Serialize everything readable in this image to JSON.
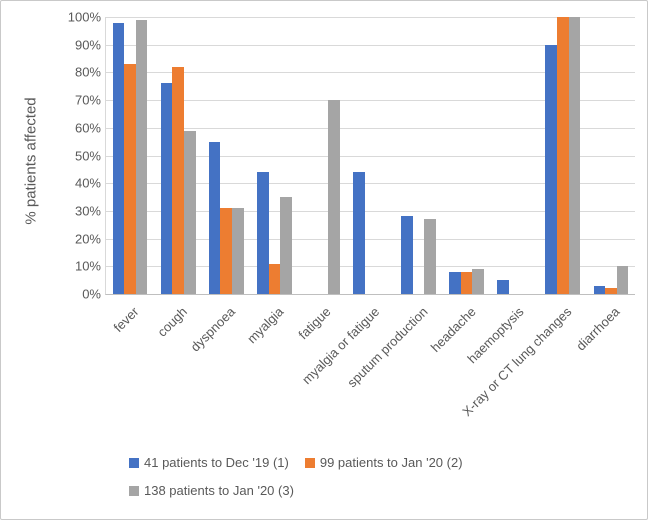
{
  "chart_data": {
    "type": "bar",
    "title": "",
    "xlabel": "",
    "ylabel": "% patients affected",
    "ylim": [
      0,
      100
    ],
    "ytick_step": 10,
    "yticks": [
      "100%",
      "90%",
      "80%",
      "70%",
      "60%",
      "50%",
      "40%",
      "30%",
      "20%",
      "10%",
      "0%"
    ],
    "grid": true,
    "legend_position": "bottom",
    "categories": [
      "fever",
      "cough",
      "dyspnoea",
      "myalgia",
      "fatigue",
      "myalgia or fatigue",
      "sputum production",
      "headache",
      "haemoptysis",
      "X-ray or CT lung changes",
      "diarrhoea"
    ],
    "series": [
      {
        "name": "41 patients to Dec '19 (1)",
        "color": "#4472C4",
        "values": [
          98,
          76,
          55,
          44,
          null,
          44,
          28,
          8,
          5,
          90,
          3
        ]
      },
      {
        "name": "99 patients to Jan '20 (2)",
        "color": "#ED7D31",
        "values": [
          83,
          82,
          31,
          11,
          null,
          null,
          null,
          8,
          null,
          100,
          2
        ]
      },
      {
        "name": "138 patients to Jan '20 (3)",
        "color": "#A5A5A5",
        "values": [
          99,
          59,
          31,
          35,
          70,
          null,
          27,
          9,
          null,
          100,
          10
        ]
      }
    ]
  },
  "colors": {
    "gridline": "#d9d9d9",
    "axis_line": "#bfbfbf",
    "text": "#595959",
    "chart_border": "#c9c9c9",
    "background": "#ffffff"
  }
}
